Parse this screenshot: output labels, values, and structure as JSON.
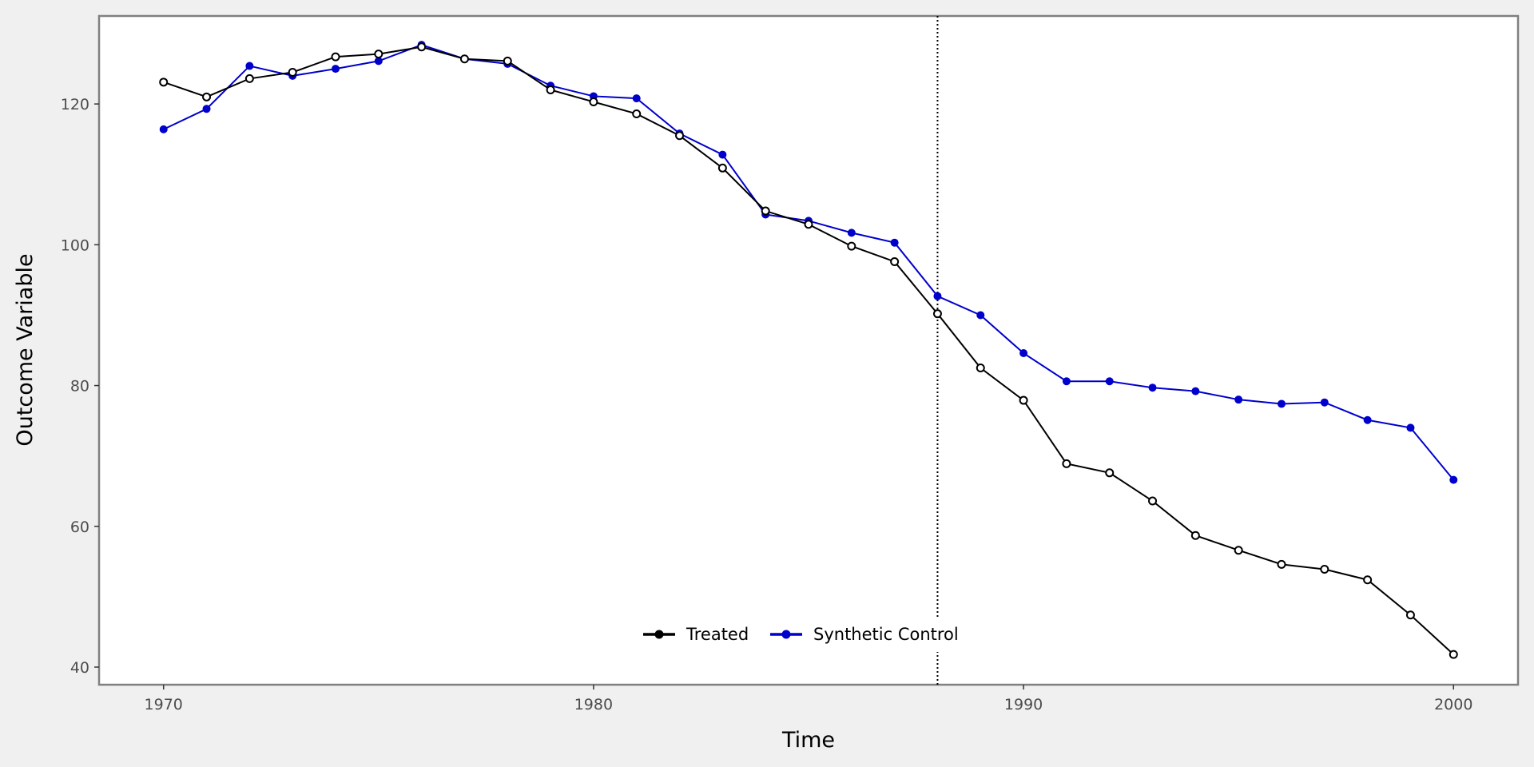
{
  "chart_data": {
    "type": "line",
    "title": "",
    "xlabel": "Time",
    "ylabel": "Outcome Variable",
    "xlim": [
      1968.5,
      2001.5
    ],
    "ylim": [
      37.5,
      132.5
    ],
    "xticks": [
      1970,
      1980,
      1990,
      2000
    ],
    "yticks": [
      40,
      60,
      80,
      100,
      120
    ],
    "grid": false,
    "legend_position": "bottom-center",
    "intervention_x": 1988,
    "x": [
      1970,
      1971,
      1972,
      1973,
      1974,
      1975,
      1976,
      1977,
      1978,
      1979,
      1980,
      1981,
      1982,
      1983,
      1984,
      1985,
      1986,
      1987,
      1988,
      1989,
      1990,
      1991,
      1992,
      1993,
      1994,
      1995,
      1996,
      1997,
      1998,
      1999,
      2000
    ],
    "series": [
      {
        "name": "Treated",
        "color": "#000000",
        "marker": "open-circle",
        "values": [
          123.1,
          121.0,
          123.6,
          124.5,
          126.7,
          127.1,
          128.1,
          126.4,
          126.1,
          122.0,
          120.3,
          118.6,
          115.5,
          110.9,
          104.8,
          102.9,
          99.8,
          97.6,
          90.2,
          82.5,
          77.9,
          68.9,
          67.6,
          63.6,
          58.7,
          56.6,
          54.6,
          53.9,
          52.4,
          47.4,
          41.8
        ]
      },
      {
        "name": "Synthetic Control",
        "color": "#0000cc",
        "marker": "filled-circle",
        "values": [
          116.4,
          119.3,
          125.4,
          124.0,
          125.0,
          126.1,
          128.4,
          126.4,
          125.7,
          122.6,
          121.1,
          120.8,
          115.8,
          112.8,
          104.3,
          103.4,
          101.7,
          100.3,
          92.7,
          90.0,
          84.6,
          80.6,
          80.6,
          79.7,
          79.2,
          78.0,
          77.4,
          77.6,
          75.1,
          74.0,
          66.6
        ]
      }
    ]
  }
}
